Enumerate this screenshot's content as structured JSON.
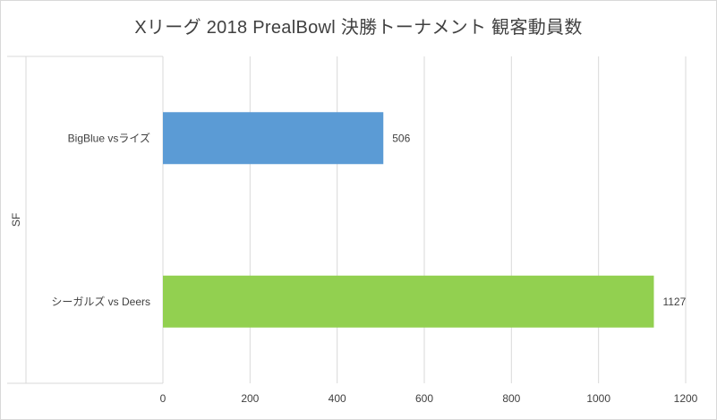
{
  "chart_data": {
    "type": "bar",
    "orientation": "horizontal",
    "title": "Xリーグ 2018 PrealBowl 決勝トーナメント 観客動員数",
    "group_label": "SF",
    "categories": [
      "シーガルズ vs Deers",
      "BigBlue vsライズ"
    ],
    "values": [
      1127,
      506
    ],
    "data_labels": [
      "1127",
      "506"
    ],
    "bar_colors": [
      "#92d050",
      "#5b9bd5"
    ],
    "xlim": [
      0,
      1200
    ],
    "xticks": [
      0,
      200,
      400,
      600,
      800,
      1000,
      1200
    ],
    "xtick_labels": [
      "0",
      "200",
      "400",
      "600",
      "800",
      "1000",
      "1200"
    ],
    "grid": "vertical",
    "legend": "none"
  }
}
